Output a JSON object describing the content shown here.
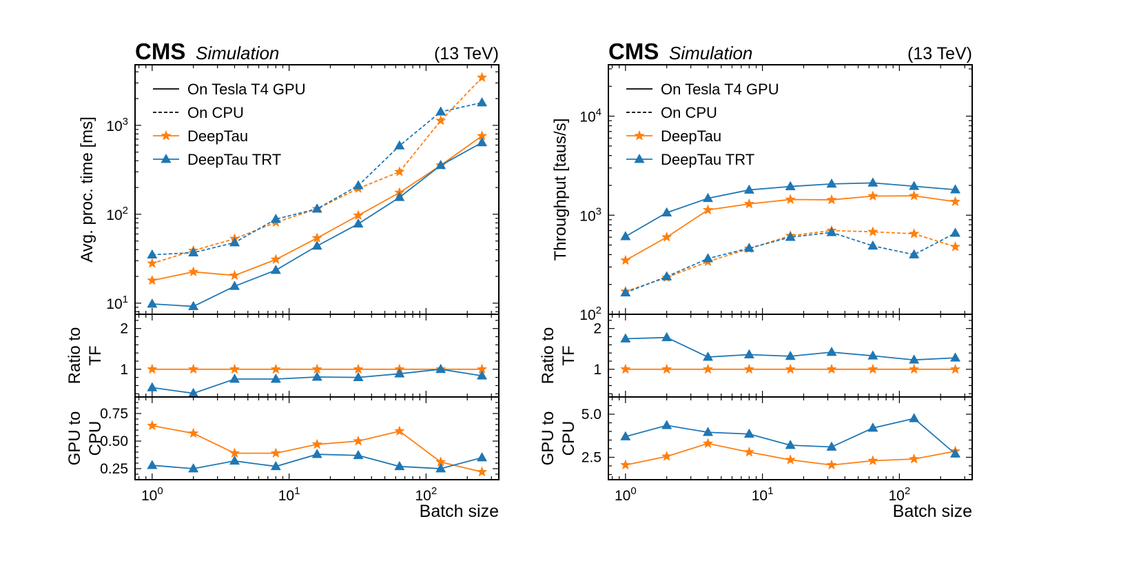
{
  "colors": {
    "deeptau": "#ff7f0e",
    "deeptau_trt": "#1f77b4"
  },
  "chart_data": [
    {
      "type": "line",
      "panel": "left",
      "header": {
        "experiment": "CMS",
        "label": "Simulation",
        "energy": "(13 TeV)"
      },
      "x": [
        1,
        2,
        4,
        8,
        16,
        32,
        64,
        128,
        256
      ],
      "x_scale": "log",
      "xlim": [
        0.75,
        340
      ],
      "xlabel": "Batch size",
      "x_ticks": [
        {
          "value": 1,
          "exp": "0"
        },
        {
          "value": 10,
          "exp": "1"
        },
        {
          "value": 100,
          "exp": "2"
        }
      ],
      "legend": {
        "placement": "upper-left",
        "entries": [
          {
            "label": "On Tesla T4 GPU",
            "style": "solid"
          },
          {
            "label": "On CPU",
            "style": "dashed"
          },
          {
            "label": "DeepTau",
            "marker": "star",
            "color": "#ff7f0e"
          },
          {
            "label": "DeepTau TRT",
            "marker": "triangle",
            "color": "#1f77b4"
          }
        ]
      },
      "main": {
        "ylabel": "Avg. proc. time [ms]",
        "y_scale": "log",
        "ylim": [
          7.5,
          4800
        ],
        "y_ticks": [
          {
            "value": 10,
            "exp": "1"
          },
          {
            "value": 100,
            "exp": "2"
          },
          {
            "value": 1000,
            "exp": "3"
          }
        ],
        "series": [
          {
            "model": "DeepTau",
            "device": "GPU",
            "values": [
              18,
              22.5,
              20.5,
              31,
              54,
              97,
              175,
              355,
              760
            ]
          },
          {
            "model": "DeepTau TRT",
            "device": "GPU",
            "values": [
              9.8,
              9.2,
              15.5,
              23.5,
              44,
              78,
              155,
              355,
              640
            ]
          },
          {
            "model": "DeepTau",
            "device": "CPU",
            "values": [
              28,
              39,
              53,
              81,
              115,
              195,
              300,
              1130,
              3450
            ]
          },
          {
            "model": "DeepTau TRT",
            "device": "CPU",
            "values": [
              35,
              37,
              48,
              88,
              115,
              210,
              590,
              1420,
              1800
            ]
          }
        ]
      },
      "ratio": {
        "ylabel_lines": [
          "Ratio to",
          "TF"
        ],
        "ylim": [
          0.32,
          2.35
        ],
        "y_ticks": [
          {
            "value": 1,
            "label": "1"
          },
          {
            "value": 2,
            "label": "2"
          }
        ],
        "series": [
          {
            "model": "DeepTau",
            "values": [
              1,
              1,
              1,
              1,
              1,
              1,
              1,
              1,
              1
            ]
          },
          {
            "model": "DeepTau TRT",
            "values": [
              0.55,
              0.41,
              0.76,
              0.76,
              0.81,
              0.8,
              0.89,
              1.0,
              0.84
            ]
          }
        ]
      },
      "gpu_cpu": {
        "ylabel_lines": [
          "GPU to",
          "CPU"
        ],
        "ylim": [
          0.15,
          0.9
        ],
        "y_ticks": [
          {
            "value": 0.25,
            "label": "0.25"
          },
          {
            "value": 0.5,
            "label": "0.50"
          },
          {
            "value": 0.75,
            "label": "0.75"
          }
        ],
        "series": [
          {
            "model": "DeepTau",
            "values": [
              0.64,
              0.57,
              0.39,
              0.39,
              0.47,
              0.5,
              0.59,
              0.31,
              0.22
            ]
          },
          {
            "model": "DeepTau TRT",
            "values": [
              0.28,
              0.25,
              0.32,
              0.27,
              0.38,
              0.37,
              0.27,
              0.25,
              0.35
            ]
          }
        ]
      }
    },
    {
      "type": "line",
      "panel": "right",
      "header": {
        "experiment": "CMS",
        "label": "Simulation",
        "energy": "(13 TeV)"
      },
      "x": [
        1,
        2,
        4,
        8,
        16,
        32,
        64,
        128,
        256
      ],
      "x_scale": "log",
      "xlim": [
        0.75,
        340
      ],
      "xlabel": "Batch size",
      "x_ticks": [
        {
          "value": 1,
          "exp": "0"
        },
        {
          "value": 10,
          "exp": "1"
        },
        {
          "value": 100,
          "exp": "2"
        }
      ],
      "legend": {
        "placement": "upper-left",
        "entries": [
          {
            "label": "On Tesla T4 GPU",
            "style": "solid"
          },
          {
            "label": "On CPU",
            "style": "dashed"
          },
          {
            "label": "DeepTau",
            "marker": "star",
            "color": "#ff7f0e"
          },
          {
            "label": "DeepTau TRT",
            "marker": "triangle",
            "color": "#1f77b4"
          }
        ]
      },
      "main": {
        "ylabel": "Throughput [taus/s]",
        "y_scale": "log",
        "ylim": [
          100,
          33000
        ],
        "y_ticks": [
          {
            "value": 100,
            "exp": "2"
          },
          {
            "value": 1000,
            "exp": "3"
          },
          {
            "value": 10000,
            "exp": "4"
          }
        ],
        "series": [
          {
            "model": "DeepTau",
            "device": "GPU",
            "values": [
              350,
              600,
              1130,
              1300,
              1440,
              1430,
              1560,
              1570,
              1370
            ]
          },
          {
            "model": "DeepTau TRT",
            "device": "GPU",
            "values": [
              610,
              1060,
              1480,
              1800,
              1950,
              2070,
              2120,
              1960,
              1810
            ]
          },
          {
            "model": "DeepTau",
            "device": "CPU",
            "values": [
              170,
              235,
              340,
              460,
              620,
              700,
              680,
              650,
              480
            ]
          },
          {
            "model": "DeepTau TRT",
            "device": "CPU",
            "values": [
              165,
              240,
              365,
              465,
              600,
              670,
              490,
              400,
              660
            ]
          }
        ]
      },
      "ratio": {
        "ylabel_lines": [
          "Ratio to",
          "TF"
        ],
        "ylim": [
          0.32,
          2.35
        ],
        "y_ticks": [
          {
            "value": 1,
            "label": "1"
          },
          {
            "value": 2,
            "label": "2"
          }
        ],
        "series": [
          {
            "model": "DeepTau",
            "values": [
              1,
              1,
              1,
              1,
              1,
              1,
              1,
              1,
              1
            ]
          },
          {
            "model": "DeepTau TRT",
            "values": [
              1.75,
              1.78,
              1.3,
              1.36,
              1.32,
              1.42,
              1.33,
              1.23,
              1.28
            ]
          }
        ]
      },
      "gpu_cpu": {
        "ylabel_lines": [
          "GPU to",
          "CPU"
        ],
        "ylim": [
          1.2,
          6.0
        ],
        "y_ticks": [
          {
            "value": 2.5,
            "label": "2.5"
          },
          {
            "value": 5.0,
            "label": "5.0"
          }
        ],
        "series": [
          {
            "model": "DeepTau",
            "values": [
              2.05,
              2.55,
              3.3,
              2.8,
              2.35,
              2.05,
              2.3,
              2.4,
              2.85
            ]
          },
          {
            "model": "DeepTau TRT",
            "values": [
              3.7,
              4.35,
              3.95,
              3.85,
              3.2,
              3.1,
              4.2,
              4.75,
              2.7
            ]
          }
        ]
      }
    }
  ]
}
